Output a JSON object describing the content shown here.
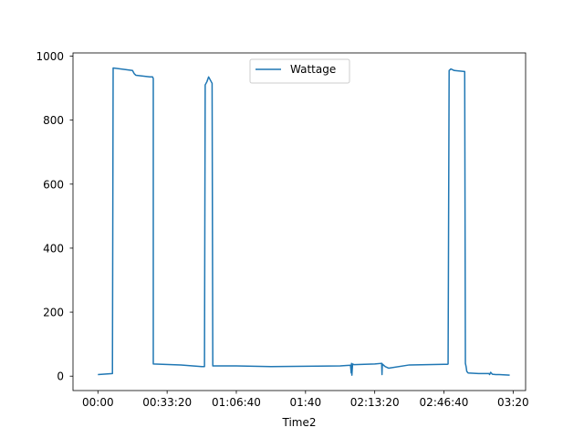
{
  "chart_data": {
    "type": "line",
    "title": "",
    "xlabel": "Time2",
    "ylabel": "",
    "x_unit": "seconds",
    "xlim": [
      -720,
      12360
    ],
    "ylim": [
      -45,
      1010
    ],
    "x_ticks": [
      {
        "value": 0,
        "label": "00:00"
      },
      {
        "value": 2000,
        "label": "00:33:20"
      },
      {
        "value": 4000,
        "label": "01:06:40"
      },
      {
        "value": 6000,
        "label": "01:40"
      },
      {
        "value": 8000,
        "label": "02:13:20"
      },
      {
        "value": 10000,
        "label": "02:46:40"
      },
      {
        "value": 12000,
        "label": "03:20"
      }
    ],
    "y_ticks": [
      {
        "value": 0,
        "label": "0"
      },
      {
        "value": 200,
        "label": "200"
      },
      {
        "value": 400,
        "label": "400"
      },
      {
        "value": 600,
        "label": "600"
      },
      {
        "value": 800,
        "label": "800"
      },
      {
        "value": 1000,
        "label": "1000"
      }
    ],
    "grid": false,
    "legend": {
      "placement": "upper center"
    },
    "series": [
      {
        "name": "Wattage",
        "color": "#1f77b4",
        "x": [
          0,
          420,
          420,
          440,
          440,
          1000,
          1050,
          1100,
          1500,
          1580,
          1600,
          1600,
          2400,
          3000,
          3080,
          3080,
          3100,
          3150,
          3200,
          3250,
          3300,
          3300,
          3320,
          4000,
          5000,
          6000,
          7000,
          7300,
          7320,
          7330,
          7340,
          7360,
          7400,
          8000,
          8200,
          8210,
          8220,
          8300,
          8400,
          9000,
          9500,
          10000,
          10100,
          10120,
          10150,
          10200,
          10300,
          10600,
          10620,
          10640,
          10660,
          10700,
          11000,
          11300,
          11320,
          11350,
          11400,
          11500,
          11600,
          11900
        ],
        "y": [
          5,
          8,
          15,
          955,
          963,
          955,
          945,
          940,
          935,
          935,
          930,
          38,
          35,
          30,
          30,
          30,
          910,
          920,
          935,
          925,
          915,
          905,
          32,
          32,
          30,
          31,
          32,
          34,
          10,
          40,
          3,
          38,
          36,
          38,
          40,
          5,
          38,
          30,
          25,
          35,
          36,
          37,
          37,
          38,
          955,
          960,
          955,
          952,
          40,
          30,
          15,
          10,
          8,
          8,
          5,
          12,
          6,
          5,
          5,
          3
        ]
      }
    ]
  }
}
